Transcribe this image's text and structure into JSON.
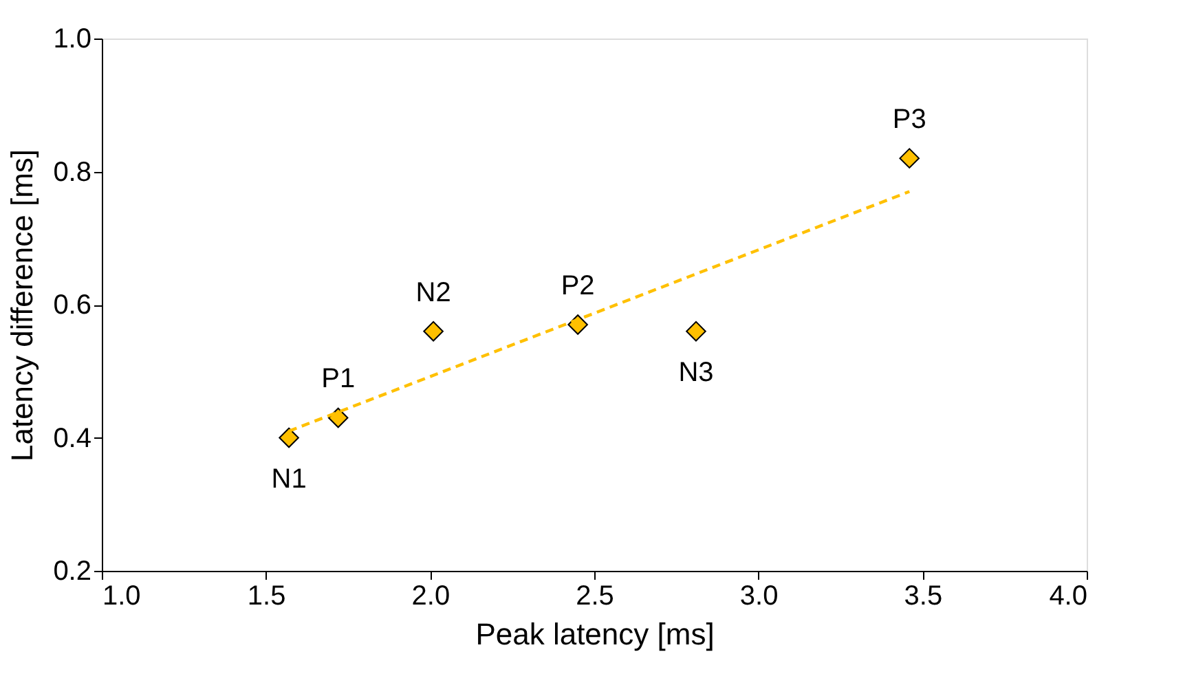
{
  "chart_data": {
    "type": "scatter",
    "xlabel": "Peak latency [ms]",
    "ylabel": "Latency difference [ms]",
    "xlim": [
      1.0,
      4.0
    ],
    "xticks": [
      {
        "value": 1.0,
        "label": "1.0"
      },
      {
        "value": 1.5,
        "label": "1.5"
      },
      {
        "value": 2.0,
        "label": "2.0"
      },
      {
        "value": 2.5,
        "label": "2.5"
      },
      {
        "value": 3.0,
        "label": "3.0"
      },
      {
        "value": 3.5,
        "label": "3.5"
      },
      {
        "value": 4.0,
        "label": "4.0"
      }
    ],
    "ylim": [
      0.2,
      1.0
    ],
    "yticks": [
      {
        "value": 0.2,
        "label": "0.2"
      },
      {
        "value": 0.4,
        "label": "0.4"
      },
      {
        "value": 0.6,
        "label": "0.6"
      },
      {
        "value": 0.8,
        "label": "0.8"
      },
      {
        "value": 1.0,
        "label": "1.0"
      }
    ],
    "grid": false,
    "series": [
      {
        "marker": "diamond",
        "color": "#ffc000",
        "x": [
          1.57,
          1.72,
          2.01,
          2.45,
          2.81,
          3.46
        ],
        "values": [
          0.4,
          0.43,
          0.56,
          0.57,
          0.56,
          0.82
        ]
      },
      {
        "type": "line",
        "color": "#ffc000",
        "line_style": "dashed",
        "x": [
          1.57,
          3.46
        ],
        "values": [
          0.41,
          0.77
        ]
      }
    ],
    "annotations": [
      {
        "text": "N1",
        "x": 1.57,
        "y": 0.4
      },
      {
        "text": "P1",
        "x": 1.72,
        "y": 0.43
      },
      {
        "text": "N2",
        "x": 2.01,
        "y": 0.56
      },
      {
        "text": "P2",
        "x": 2.45,
        "y": 0.57
      },
      {
        "text": "N3",
        "x": 2.81,
        "y": 0.56
      },
      {
        "text": "P3",
        "x": 3.46,
        "y": 0.82
      }
    ]
  }
}
